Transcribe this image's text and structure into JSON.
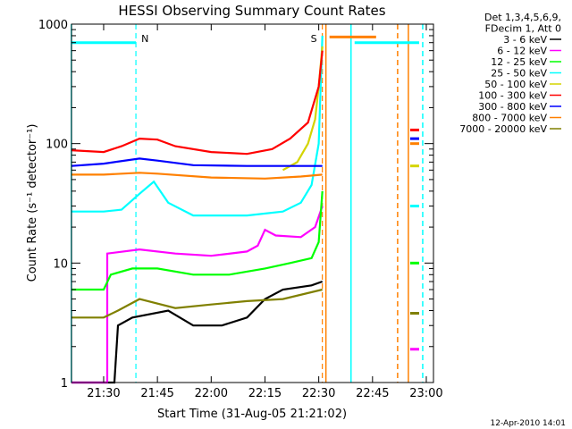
{
  "chart_data": {
    "type": "line",
    "title": "HESSI Observing Summary Count Rates",
    "xlabel": "Start Time (31-Aug-05 21:21:02)",
    "ylabel": "Count Rate (s⁻¹ detector⁻¹)",
    "yscale": "log",
    "ylim": [
      1,
      1000
    ],
    "xlim": [
      "21:21:02",
      "23:02:00"
    ],
    "x_ticks": [
      "21:30",
      "21:45",
      "22:00",
      "22:15",
      "22:30",
      "22:45",
      "23:00"
    ],
    "y_ticks": [
      "1",
      "10",
      "100",
      "1000"
    ],
    "legend_header": [
      "Det 1,3,4,5,6,9,",
      "FDecim 1, Att 0"
    ],
    "legend_position": "right, outside plot",
    "series": [
      {
        "name": "3 - 6 keV",
        "color": "#000000",
        "points": [
          [
            "21:21",
            1
          ],
          [
            "21:33",
            1
          ],
          [
            "21:34",
            3
          ],
          [
            "21:38",
            3.5
          ],
          [
            "21:48",
            4
          ],
          [
            "21:55",
            3
          ],
          [
            "22:03",
            3
          ],
          [
            "22:10",
            3.5
          ],
          [
            "22:15",
            5
          ],
          [
            "22:20",
            6
          ],
          [
            "22:28",
            6.5
          ],
          [
            "22:31",
            7
          ]
        ]
      },
      {
        "name": "6 - 12 keV",
        "color": "#ff00ff",
        "points": [
          [
            "21:21",
            1
          ],
          [
            "21:31",
            1
          ],
          [
            "21:31",
            12
          ],
          [
            "21:40",
            13
          ],
          [
            "21:50",
            12
          ],
          [
            "22:00",
            11.5
          ],
          [
            "22:10",
            12.5
          ],
          [
            "22:13",
            14
          ],
          [
            "22:15",
            19
          ],
          [
            "22:18",
            17
          ],
          [
            "22:25",
            16.5
          ],
          [
            "22:29",
            20
          ],
          [
            "22:31",
            30
          ]
        ]
      },
      {
        "name": "12 - 25 keV",
        "color": "#00ff00",
        "points": [
          [
            "21:21",
            6
          ],
          [
            "21:30",
            6
          ],
          [
            "21:32",
            8
          ],
          [
            "21:38",
            9
          ],
          [
            "21:45",
            9
          ],
          [
            "21:55",
            8
          ],
          [
            "22:05",
            8
          ],
          [
            "22:15",
            9
          ],
          [
            "22:22",
            10
          ],
          [
            "22:28",
            11
          ],
          [
            "22:30",
            15
          ],
          [
            "22:31",
            40
          ]
        ]
      },
      {
        "name": "25 - 50 keV",
        "color": "#00ffff",
        "points": [
          [
            "21:21",
            27
          ],
          [
            "21:30",
            27
          ],
          [
            "21:35",
            28
          ],
          [
            "21:40",
            38
          ],
          [
            "21:44",
            48
          ],
          [
            "21:48",
            32
          ],
          [
            "21:55",
            25
          ],
          [
            "22:10",
            25
          ],
          [
            "22:20",
            27
          ],
          [
            "22:25",
            32
          ],
          [
            "22:28",
            45
          ],
          [
            "22:30",
            100
          ],
          [
            "22:31",
            800
          ]
        ]
      },
      {
        "name": "50 - 100 keV",
        "color": "#d4d400",
        "points": [
          [
            "22:20",
            60
          ],
          [
            "22:24",
            70
          ],
          [
            "22:27",
            100
          ],
          [
            "22:29",
            160
          ],
          [
            "22:30",
            300
          ],
          [
            "22:31",
            650
          ]
        ]
      },
      {
        "name": "100 - 300 keV",
        "color": "#ff0000",
        "points": [
          [
            "21:21",
            88
          ],
          [
            "21:30",
            85
          ],
          [
            "21:35",
            95
          ],
          [
            "21:40",
            110
          ],
          [
            "21:45",
            108
          ],
          [
            "21:50",
            95
          ],
          [
            "22:00",
            85
          ],
          [
            "22:10",
            82
          ],
          [
            "22:17",
            90
          ],
          [
            "22:22",
            110
          ],
          [
            "22:27",
            150
          ],
          [
            "22:30",
            300
          ],
          [
            "22:31",
            600
          ]
        ]
      },
      {
        "name": "300 - 800 keV",
        "color": "#0000ff",
        "points": [
          [
            "21:21",
            65
          ],
          [
            "21:30",
            68
          ],
          [
            "21:40",
            75
          ],
          [
            "21:45",
            72
          ],
          [
            "21:55",
            66
          ],
          [
            "22:10",
            65
          ],
          [
            "22:20",
            65
          ],
          [
            "22:31",
            65
          ]
        ]
      },
      {
        "name": "800 - 7000 keV",
        "color": "#ff8000",
        "points": [
          [
            "21:21",
            55
          ],
          [
            "21:30",
            55
          ],
          [
            "21:40",
            57
          ],
          [
            "21:45",
            56
          ],
          [
            "22:00",
            52
          ],
          [
            "22:15",
            51
          ],
          [
            "22:25",
            53
          ],
          [
            "22:31",
            55
          ]
        ]
      },
      {
        "name": "7000 - 20000 keV",
        "color": "#808000",
        "points": [
          [
            "21:21",
            3.5
          ],
          [
            "21:30",
            3.5
          ],
          [
            "21:34",
            4
          ],
          [
            "21:40",
            5
          ],
          [
            "21:50",
            4.2
          ],
          [
            "22:00",
            4.5
          ],
          [
            "22:10",
            4.8
          ],
          [
            "22:20",
            5
          ],
          [
            "22:31",
            6
          ]
        ]
      }
    ],
    "tail_segments": [
      {
        "color": "#ff0000",
        "value": 130
      },
      {
        "color": "#0000ff",
        "value": 110
      },
      {
        "color": "#ff8000",
        "value": 100
      },
      {
        "color": "#d4d400",
        "value": 65
      },
      {
        "color": "#00ffff",
        "value": 30
      },
      {
        "color": "#00ff00",
        "value": 10
      },
      {
        "color": "#808000",
        "value": 3.8
      },
      {
        "color": "#ff00ff",
        "value": 1.9
      }
    ],
    "markers": [
      {
        "label": "N",
        "time": "21:39",
        "color": "#00ffff"
      },
      {
        "label": "S",
        "time": "22:31",
        "color": "#ff8000"
      }
    ],
    "bars": [
      {
        "color": "#00ffff",
        "start": "21:21",
        "end": "21:39",
        "value": 700
      },
      {
        "color": "#ff8000",
        "start": "22:33",
        "end": "22:46",
        "value": 780
      },
      {
        "color": "#00ffff",
        "start": "22:40",
        "end": "22:58",
        "value": 700
      }
    ],
    "boundaries": [
      {
        "color": "#00ffff",
        "time": "21:21",
        "style": "solid"
      },
      {
        "color": "#ff8000",
        "time": "22:32",
        "style": "solid"
      },
      {
        "color": "#00ffff",
        "time": "22:39",
        "style": "solid"
      },
      {
        "color": "#ff8000",
        "time": "22:52",
        "style": "dashed"
      },
      {
        "color": "#ff8000",
        "time": "22:55",
        "style": "solid"
      },
      {
        "color": "#00ffff",
        "time": "22:59",
        "style": "dashed"
      }
    ],
    "date_stamp": "12-Apr-2010 14:01"
  }
}
